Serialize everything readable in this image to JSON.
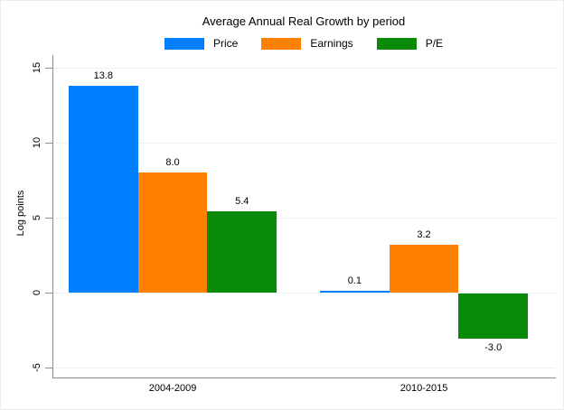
{
  "chart_data": {
    "type": "bar",
    "title": "Average Annual Real Growth by period",
    "xlabel": "",
    "ylabel": "Log points",
    "categories": [
      "2004-2009",
      "2010-2015"
    ],
    "series": [
      {
        "name": "Price",
        "color": "#0080fe",
        "values": [
          13.8,
          0.1
        ]
      },
      {
        "name": "Earnings",
        "color": "#ff8000",
        "values": [
          8.0,
          3.2
        ]
      },
      {
        "name": "P/E",
        "color": "#0a8a0a",
        "values": [
          5.4,
          -3.0
        ]
      }
    ],
    "value_labels": [
      [
        "13.8",
        "8.0",
        "5.4"
      ],
      [
        "0.1",
        "3.2",
        "-3.0"
      ]
    ],
    "yticks": [
      15,
      10,
      5,
      0,
      -5
    ],
    "ylim": [
      -5.7,
      15.8
    ],
    "grid": true,
    "legend_position": "top",
    "colors": {
      "grid": "#e9f2f2",
      "axis": "#8c8c8c",
      "text": "#000000",
      "background": "#ffffff",
      "border": "#ececec"
    }
  }
}
